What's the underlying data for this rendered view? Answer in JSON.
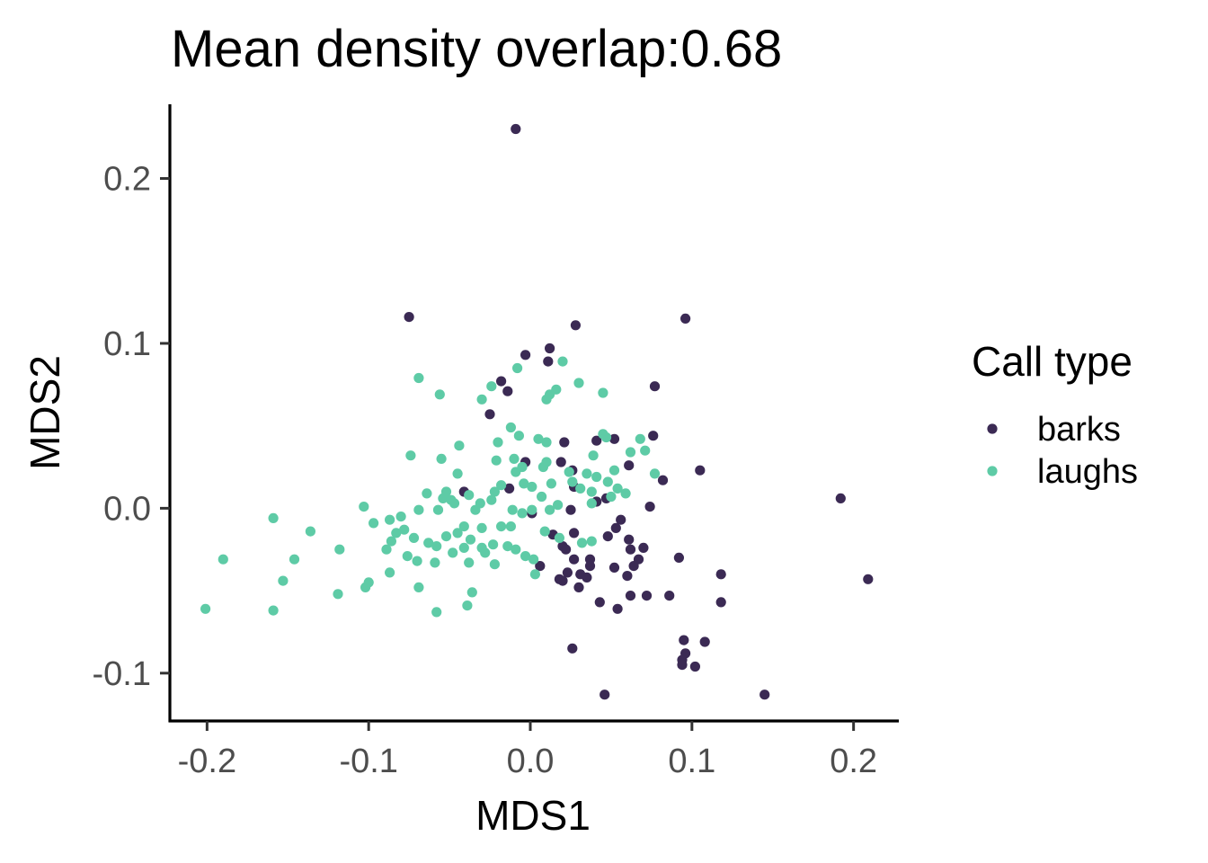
{
  "chart_data": {
    "type": "scatter",
    "title": "Mean density overlap:0.68",
    "xlabel": "MDS1",
    "ylabel": "MDS2",
    "xlim": [
      -0.223,
      0.228
    ],
    "ylim": [
      -0.129,
      0.245
    ],
    "x_ticks": [
      -0.2,
      -0.1,
      0.0,
      0.1,
      0.2
    ],
    "x_tick_labels": [
      "-0.2",
      "-0.1",
      "0.0",
      "0.1",
      "0.2"
    ],
    "y_ticks": [
      -0.1,
      0.0,
      0.1,
      0.2
    ],
    "y_tick_labels": [
      "-0.1",
      "0.0",
      "0.1",
      "0.2"
    ],
    "grid": false,
    "legend": {
      "title": "Call type",
      "position": "right"
    },
    "series": [
      {
        "name": "barks",
        "color": "#3b2a54",
        "points": [
          [
            -0.009,
            0.23
          ],
          [
            -0.075,
            0.116
          ],
          [
            0.096,
            0.115
          ],
          [
            0.028,
            0.111
          ],
          [
            0.012,
            0.097
          ],
          [
            -0.003,
            0.093
          ],
          [
            0.011,
            0.089
          ],
          [
            -0.018,
            0.077
          ],
          [
            -0.014,
            0.071
          ],
          [
            0.077,
            0.074
          ],
          [
            -0.025,
            0.057
          ],
          [
            0.076,
            0.044
          ],
          [
            0.021,
            0.04
          ],
          [
            0.041,
            0.041
          ],
          [
            0.052,
            0.042
          ],
          [
            0.019,
            0.028
          ],
          [
            -0.003,
            0.028
          ],
          [
            0.105,
            0.023
          ],
          [
            0.026,
            0.023
          ],
          [
            0.061,
            0.026
          ],
          [
            0.082,
            0.017
          ],
          [
            0.027,
            0.013
          ],
          [
            -0.013,
            0.012
          ],
          [
            -0.041,
            0.01
          ],
          [
            0.192,
            0.006
          ],
          [
            0.041,
            0.004
          ],
          [
            0.047,
            0.006
          ],
          [
            0.074,
            0.001
          ],
          [
            0.025,
            -0.001
          ],
          [
            0.001,
            -0.003
          ],
          [
            0.056,
            -0.007
          ],
          [
            0.053,
            -0.012
          ],
          [
            0.027,
            -0.015
          ],
          [
            0.014,
            -0.016
          ],
          [
            0.061,
            -0.019
          ],
          [
            0.048,
            -0.017
          ],
          [
            0.02,
            -0.023
          ],
          [
            0.062,
            -0.025
          ],
          [
            0.022,
            -0.025
          ],
          [
            0.07,
            -0.024
          ],
          [
            0.092,
            -0.03
          ],
          [
            0.027,
            -0.031
          ],
          [
            0.037,
            -0.031
          ],
          [
            0.067,
            -0.031
          ],
          [
            0.064,
            -0.035
          ],
          [
            0.052,
            -0.036
          ],
          [
            0.037,
            -0.035
          ],
          [
            0.006,
            -0.035
          ],
          [
            0.031,
            -0.04
          ],
          [
            0.023,
            -0.039
          ],
          [
            0.035,
            -0.042
          ],
          [
            0.06,
            -0.041
          ],
          [
            0.118,
            -0.04
          ],
          [
            0.018,
            -0.043
          ],
          [
            0.02,
            -0.044
          ],
          [
            0.209,
            -0.043
          ],
          [
            0.03,
            -0.048
          ],
          [
            0.062,
            -0.053
          ],
          [
            0.072,
            -0.053
          ],
          [
            0.086,
            -0.053
          ],
          [
            0.043,
            -0.057
          ],
          [
            0.118,
            -0.057
          ],
          [
            0.054,
            -0.061
          ],
          [
            0.095,
            -0.08
          ],
          [
            0.108,
            -0.081
          ],
          [
            0.026,
            -0.085
          ],
          [
            0.096,
            -0.088
          ],
          [
            0.094,
            -0.092
          ],
          [
            0.094,
            -0.095
          ],
          [
            0.102,
            -0.096
          ],
          [
            0.046,
            -0.113
          ],
          [
            0.145,
            -0.113
          ]
        ]
      },
      {
        "name": "laughs",
        "color": "#5ecba6",
        "points": [
          [
            -0.008,
            0.085
          ],
          [
            0.02,
            0.089
          ],
          [
            -0.069,
            0.079
          ],
          [
            0.03,
            0.076
          ],
          [
            -0.024,
            0.074
          ],
          [
            0.016,
            0.072
          ],
          [
            0.045,
            0.07
          ],
          [
            -0.056,
            0.069
          ],
          [
            0.012,
            0.069
          ],
          [
            -0.03,
            0.066
          ],
          [
            0.01,
            0.066
          ],
          [
            -0.012,
            0.049
          ],
          [
            -0.007,
            0.044
          ],
          [
            0.005,
            0.042
          ],
          [
            0.01,
            0.04
          ],
          [
            -0.02,
            0.04
          ],
          [
            0.045,
            0.045
          ],
          [
            0.047,
            0.043
          ],
          [
            0.068,
            0.042
          ],
          [
            0.039,
            0.032
          ],
          [
            -0.074,
            0.032
          ],
          [
            -0.044,
            0.038
          ],
          [
            0.062,
            0.034
          ],
          [
            0.071,
            0.035
          ],
          [
            -0.021,
            0.029
          ],
          [
            0.01,
            0.028
          ],
          [
            -0.01,
            0.03
          ],
          [
            0.008,
            0.025
          ],
          [
            0.024,
            0.022
          ],
          [
            0.052,
            0.023
          ],
          [
            0.035,
            0.021
          ],
          [
            -0.055,
            0.03
          ],
          [
            -0.045,
            0.021
          ],
          [
            -0.009,
            0.022
          ],
          [
            -0.005,
            0.025
          ],
          [
            0.077,
            0.021
          ],
          [
            0.041,
            0.019
          ],
          [
            0.026,
            0.016
          ],
          [
            0.048,
            0.016
          ],
          [
            -0.004,
            0.015
          ],
          [
            0.001,
            0.013
          ],
          [
            0.013,
            0.015
          ],
          [
            0.031,
            0.012
          ],
          [
            0.054,
            0.012
          ],
          [
            -0.018,
            0.014
          ],
          [
            -0.022,
            0.01
          ],
          [
            0.038,
            0.01
          ],
          [
            -0.052,
            0.01
          ],
          [
            0.059,
            0.009
          ],
          [
            -0.064,
            0.009
          ],
          [
            0.05,
            0.007
          ],
          [
            0.007,
            0.007
          ],
          [
            -0.038,
            0.008
          ],
          [
            -0.054,
            0.006
          ],
          [
            -0.031,
            0.003
          ],
          [
            -0.024,
            0.005
          ],
          [
            -0.049,
            0.005
          ],
          [
            0.038,
            0.003
          ],
          [
            0.017,
            0.002
          ],
          [
            -0.047,
            0.003
          ],
          [
            -0.103,
            0.001
          ],
          [
            -0.057,
            -0.001
          ],
          [
            -0.069,
            -0.001
          ],
          [
            -0.011,
            -0.001
          ],
          [
            0.001,
            -0.001
          ],
          [
            0.012,
            -0.001
          ],
          [
            -0.034,
            -0.001
          ],
          [
            -0.005,
            -0.003
          ],
          [
            -0.08,
            -0.005
          ],
          [
            -0.087,
            -0.007
          ],
          [
            -0.159,
            -0.006
          ],
          [
            -0.097,
            -0.009
          ],
          [
            -0.041,
            -0.011
          ],
          [
            -0.012,
            -0.011
          ],
          [
            -0.018,
            -0.011
          ],
          [
            -0.03,
            -0.012
          ],
          [
            -0.078,
            -0.013
          ],
          [
            -0.083,
            -0.015
          ],
          [
            -0.136,
            -0.014
          ],
          [
            -0.045,
            -0.015
          ],
          [
            0.009,
            -0.014
          ],
          [
            -0.052,
            -0.017
          ],
          [
            -0.072,
            -0.018
          ],
          [
            0.018,
            -0.018
          ],
          [
            -0.037,
            -0.019
          ],
          [
            -0.086,
            -0.02
          ],
          [
            -0.063,
            -0.021
          ],
          [
            -0.058,
            -0.023
          ],
          [
            -0.023,
            -0.022
          ],
          [
            0.038,
            -0.02
          ],
          [
            -0.041,
            -0.024
          ],
          [
            -0.03,
            -0.024
          ],
          [
            -0.014,
            -0.023
          ],
          [
            -0.009,
            -0.025
          ],
          [
            0.032,
            -0.021
          ],
          [
            -0.089,
            -0.025
          ],
          [
            -0.118,
            -0.025
          ],
          [
            -0.048,
            -0.027
          ],
          [
            -0.028,
            -0.027
          ],
          [
            -0.003,
            -0.029
          ],
          [
            0.002,
            -0.031
          ],
          [
            -0.076,
            -0.029
          ],
          [
            -0.146,
            -0.031
          ],
          [
            -0.19,
            -0.031
          ],
          [
            -0.07,
            -0.032
          ],
          [
            -0.059,
            -0.033
          ],
          [
            -0.038,
            -0.033
          ],
          [
            -0.022,
            -0.034
          ],
          [
            -0.087,
            -0.039
          ],
          [
            -0.153,
            -0.044
          ],
          [
            -0.1,
            -0.045
          ],
          [
            0.003,
            -0.04
          ],
          [
            -0.102,
            -0.048
          ],
          [
            -0.069,
            -0.048
          ],
          [
            -0.119,
            -0.052
          ],
          [
            -0.036,
            -0.051
          ],
          [
            -0.039,
            -0.059
          ],
          [
            -0.201,
            -0.061
          ],
          [
            -0.159,
            -0.062
          ],
          [
            -0.058,
            -0.063
          ]
        ]
      }
    ]
  }
}
